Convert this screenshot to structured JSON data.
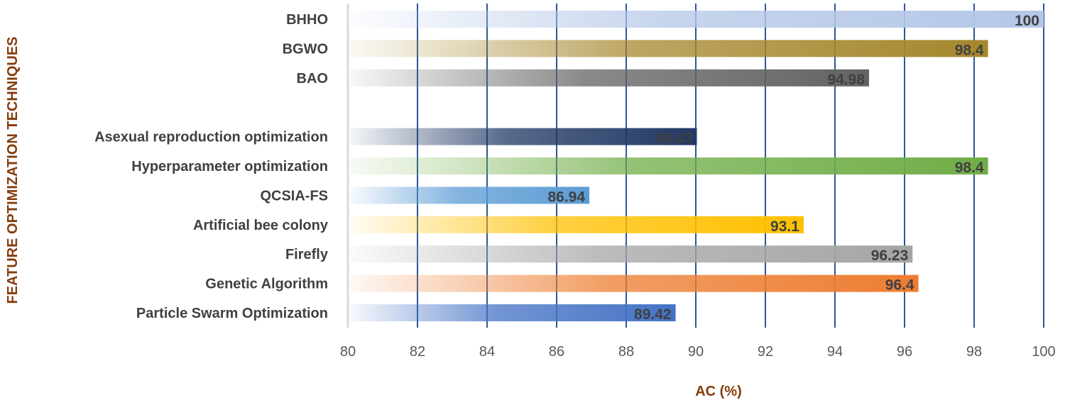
{
  "chart_data": {
    "type": "bar",
    "orientation": "horizontal",
    "categories": [
      "BHHO",
      "BGWO",
      "BAO",
      "",
      "Asexual reproduction optimization",
      "Hyperparameter optimization",
      "QCSIA-FS",
      "Artificial bee colony",
      "Firefly",
      "Genetic Algorithm",
      "Particle Swarm Optimization"
    ],
    "values": [
      100,
      98.4,
      94.98,
      null,
      90.03,
      98.4,
      86.94,
      93.1,
      96.23,
      96.4,
      89.42
    ],
    "value_labels": [
      "100",
      "98.4",
      "94.98",
      "",
      "90.03",
      "98.4",
      "86.94",
      "93.1",
      "96.23",
      "96.4",
      "89.42"
    ],
    "bar_colors": [
      "#b4c7e7",
      "#a5872c",
      "#636363",
      "",
      "#203864",
      "#70ad47",
      "#5b9bd5",
      "#ffc000",
      "#a5a5a5",
      "#ed7d31",
      "#4472c4"
    ],
    "xlabel": "AC (%)",
    "ylabel": "FEATURE OPTIMIZATION TECHNIQUES",
    "xlim": [
      80,
      100
    ],
    "xticks": [
      "80",
      "82",
      "84",
      "86",
      "88",
      "90",
      "92",
      "94",
      "96",
      "98",
      "100"
    ],
    "grid": "vertical",
    "grid_color": "#2f5597",
    "axis_title_color": "#843c0c",
    "legend": "none"
  }
}
